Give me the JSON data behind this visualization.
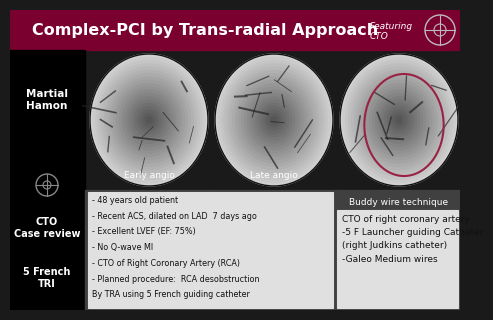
{
  "bg_color": "#1a1a1a",
  "header_color": "#7a0030",
  "header_text": "Complex-PCI by Trans-radial Approach",
  "header_text_color": "#ffffff",
  "featuring_text": "Featuring\nCTO",
  "featuring_color": "#ffffff",
  "left_sidebar_color": "#000000",
  "left_labels": [
    "Martial\nHamon",
    "CTO\nCase review",
    "5 French\nTRI"
  ],
  "left_label_color": "#ffffff",
  "image_labels": [
    "Early angio",
    "Late angio",
    "Buddy wire technique"
  ],
  "bullet_text": [
    "- 48 years old patient",
    "- Recent ACS, dilated on LAD  7 days ago",
    "- Excellent LVEF (EF: 75%)",
    "- No Q-wave MI",
    "- CTO of Right Coronary Artery (RCA)",
    "- Planned procedure:  RCA desobstruction",
    "By TRA using 5 French guiding catheter"
  ],
  "right_box_text": "CTO of right coronary artery\n-5 F Launcher guiding Catheter\n(right Judkins catheter)\n-Galeo Medium wires",
  "right_box_bg": "#e0e0e0",
  "bullet_box_bg": "#e0e0e0",
  "crosshair_color": "#cccccc",
  "circle_color": "#882244"
}
